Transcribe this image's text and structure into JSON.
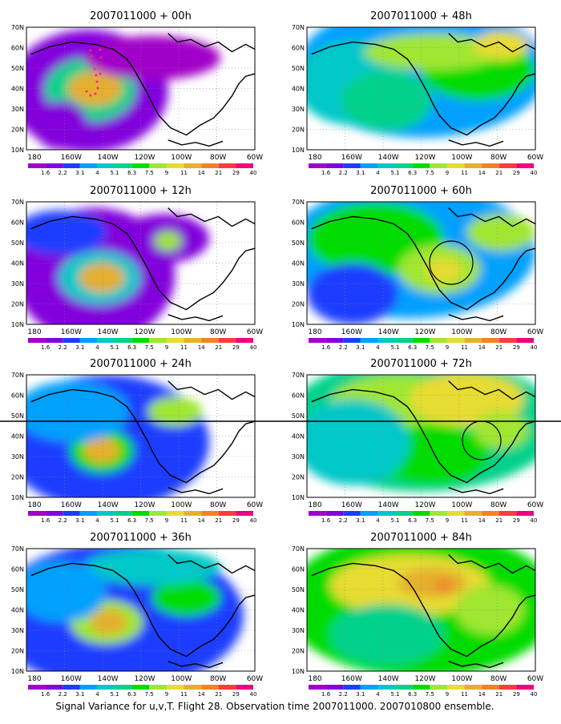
{
  "panels": [
    {
      "title": "2007011000 + 00h"
    },
    {
      "title": "2007011000 + 48h"
    },
    {
      "title": "2007011000 + 12h"
    },
    {
      "title": "2007011000 + 60h"
    },
    {
      "title": "2007011000 + 24h"
    },
    {
      "title": "2007011000 + 72h"
    },
    {
      "title": "2007011000 + 36h"
    },
    {
      "title": "2007011000 + 84h"
    }
  ],
  "lat_labels": [
    "70N",
    "60N",
    "50N",
    "40N",
    "30N",
    "20N",
    "10N"
  ],
  "lon_labels": [
    "180",
    "160W",
    "140W",
    "120W",
    "100W",
    "80W",
    "60W"
  ],
  "colorbar": {
    "labels": [
      "1.6",
      "2.2",
      "3.1",
      "4",
      "5.1",
      "6.3",
      "7.5",
      "9",
      "11",
      "14",
      "21",
      "29",
      "40"
    ],
    "colors": [
      "#a000c8",
      "#8200dc",
      "#1e3cff",
      "#00a0ff",
      "#00c8c8",
      "#00d28c",
      "#00dc00",
      "#a0e632",
      "#e6dc32",
      "#e6af2d",
      "#f08228",
      "#fa3c3c",
      "#f00082"
    ]
  },
  "footer": "Signal Variance for u,v,T. Flight 28. Observation time 2007011000. 2007010800 ensemble."
}
